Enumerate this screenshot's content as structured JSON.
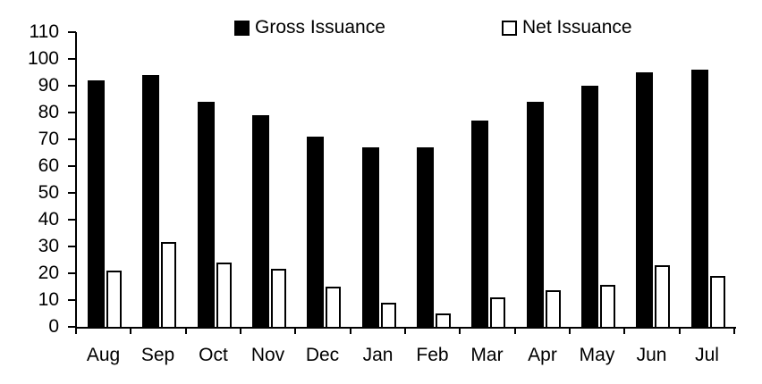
{
  "chart_data": {
    "type": "bar",
    "title": "",
    "xlabel": "",
    "ylabel": "",
    "categories": [
      "Aug",
      "Sep",
      "Oct",
      "Nov",
      "Dec",
      "Jan",
      "Feb",
      "Mar",
      "Apr",
      "May",
      "Jun",
      "Jul"
    ],
    "series": [
      {
        "name": "Gross Issuance",
        "values": [
          92,
          94,
          84,
          79,
          71,
          67,
          67,
          77,
          84,
          90,
          95,
          96
        ],
        "fill": "#000000",
        "stroke": "#000000"
      },
      {
        "name": "Net Issuance",
        "values": [
          21,
          31.5,
          24,
          21.5,
          15,
          9,
          5,
          11,
          13.5,
          15.5,
          23,
          19
        ],
        "fill": "#ffffff",
        "stroke": "#000000"
      }
    ],
    "ylim": [
      0,
      110
    ],
    "ytick_step": 10,
    "ytick_labels": [
      "0",
      "10",
      "20",
      "30",
      "40",
      "50",
      "60",
      "70",
      "80",
      "90",
      "100",
      "110"
    ],
    "grid": false,
    "legend_position": "top-center",
    "background_color": "#ffffff",
    "axis_color": "#000000",
    "text_color": "#000000"
  }
}
